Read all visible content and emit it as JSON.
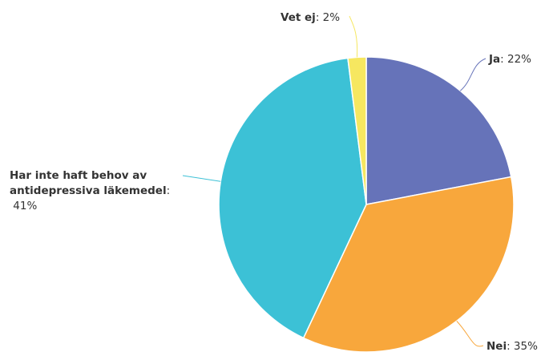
{
  "chart_data": {
    "type": "pie",
    "slices": [
      {
        "label": "Ja",
        "value": 22,
        "value_text": "22%",
        "color": "#6673b9"
      },
      {
        "label": "Nei",
        "value": 35,
        "value_text": "35%",
        "color": "#f8a73c"
      },
      {
        "label": "Har inte haft behov av antidepressiva läkemedel",
        "value": 41,
        "value_text": "41%",
        "color": "#3cc1d6"
      },
      {
        "label": "Vet ej",
        "value": 2,
        "value_text": "2%",
        "color": "#f6e760"
      }
    ],
    "label_lines": {
      "Ja": [
        "Ja"
      ],
      "Nei": [
        "Nei"
      ],
      "Har inte haft behov av antidepressiva läkemedel": [
        "Har inte haft behov av",
        "antidepressiva läkemedel"
      ],
      "Vet ej": [
        "Vet ej"
      ]
    },
    "separator": ": ",
    "start_angle_deg": 0,
    "direction": "clockwise",
    "legend": "none"
  }
}
